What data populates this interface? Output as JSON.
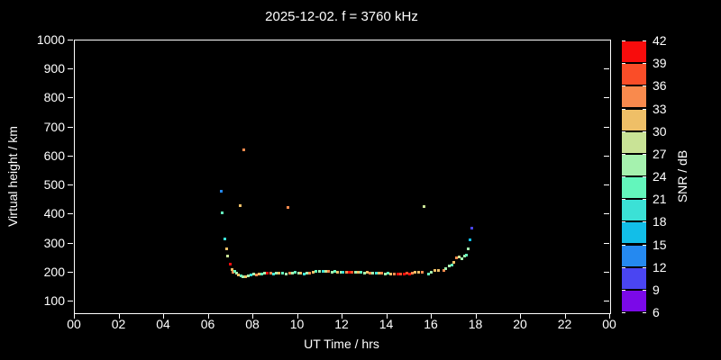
{
  "title": "2025-12-02. f = 3760 kHz",
  "axes": {
    "x": {
      "label": "UT Time / hrs",
      "min": 0,
      "max": 24,
      "tick_values": [
        0,
        2,
        4,
        6,
        8,
        10,
        12,
        14,
        16,
        18,
        20,
        22,
        24
      ],
      "tick_labels": [
        "00",
        "02",
        "04",
        "06",
        "08",
        "10",
        "12",
        "14",
        "16",
        "18",
        "20",
        "22",
        "00"
      ]
    },
    "y": {
      "label": "Virtual height / km",
      "min": 60,
      "max": 1000,
      "tick_values": [
        100,
        200,
        300,
        400,
        500,
        600,
        700,
        800,
        900,
        1000
      ]
    }
  },
  "colorbar": {
    "label": "SNR / dB",
    "min": 6,
    "max": 42,
    "step": 3,
    "tick_labels": [
      42,
      39,
      36,
      33,
      30,
      27,
      24,
      21,
      18,
      15,
      12,
      9,
      6
    ],
    "colors_low_to_high": [
      "#7B09E8",
      "#4A45F2",
      "#2589F0",
      "#12BEE8",
      "#3BE1D6",
      "#63F6BC",
      "#A5F2AE",
      "#C9E396",
      "#EFBF67",
      "#F98A4D",
      "#FA4D28",
      "#F80C0C"
    ]
  },
  "chart_data": {
    "type": "scatter",
    "title": "2025-12-02. f = 3760 kHz",
    "xlabel": "UT Time / hrs",
    "ylabel": "Virtual height / km",
    "zlabel": "SNR / dB",
    "xlim": [
      0,
      24
    ],
    "ylim": [
      60,
      1000
    ],
    "zlim": [
      6,
      42
    ],
    "grid": false,
    "legend": "colorbar-right",
    "points_format": [
      "ut_hr",
      "virtual_height_km",
      "snr_db"
    ],
    "points": [
      [
        6.55,
        481,
        13
      ],
      [
        6.57,
        409,
        22
      ],
      [
        6.72,
        319,
        19
      ],
      [
        6.8,
        282,
        31
      ],
      [
        6.84,
        259,
        28
      ],
      [
        6.95,
        230,
        40
      ],
      [
        7.03,
        212,
        31
      ],
      [
        7.08,
        202,
        34
      ],
      [
        7.16,
        207,
        22
      ],
      [
        7.22,
        199,
        25
      ],
      [
        7.31,
        192,
        31
      ],
      [
        7.38,
        433,
        31
      ],
      [
        7.57,
        625,
        34
      ],
      [
        9.52,
        426,
        34
      ],
      [
        15.64,
        428,
        28
      ],
      [
        7.42,
        190,
        22
      ],
      [
        7.52,
        188,
        25
      ],
      [
        7.62,
        186,
        31
      ],
      [
        7.75,
        190,
        25
      ],
      [
        7.88,
        193,
        19
      ],
      [
        8.0,
        195,
        25
      ],
      [
        8.12,
        193,
        34
      ],
      [
        8.25,
        195,
        31
      ],
      [
        8.38,
        197,
        22
      ],
      [
        8.5,
        199,
        25
      ],
      [
        8.62,
        201,
        40
      ],
      [
        8.75,
        199,
        34
      ],
      [
        8.88,
        197,
        19
      ],
      [
        9.0,
        199,
        25
      ],
      [
        9.15,
        201,
        31
      ],
      [
        9.3,
        199,
        22
      ],
      [
        9.45,
        197,
        25
      ],
      [
        9.6,
        199,
        34
      ],
      [
        9.72,
        201,
        25
      ],
      [
        9.85,
        203,
        22
      ],
      [
        10.0,
        201,
        25
      ],
      [
        10.12,
        199,
        31
      ],
      [
        10.25,
        197,
        19
      ],
      [
        10.4,
        199,
        25
      ],
      [
        10.52,
        201,
        34
      ],
      [
        10.65,
        203,
        31
      ],
      [
        10.8,
        205,
        22
      ],
      [
        10.95,
        206,
        25
      ],
      [
        11.1,
        207,
        19
      ],
      [
        11.22,
        207,
        28
      ],
      [
        11.35,
        205,
        34
      ],
      [
        11.5,
        204,
        25
      ],
      [
        11.62,
        205,
        22
      ],
      [
        11.75,
        204,
        31
      ],
      [
        11.9,
        203,
        25
      ],
      [
        12.02,
        202,
        19
      ],
      [
        12.15,
        203,
        34
      ],
      [
        12.3,
        202,
        40
      ],
      [
        12.42,
        203,
        37
      ],
      [
        12.55,
        204,
        25
      ],
      [
        12.7,
        203,
        31
      ],
      [
        12.82,
        202,
        22
      ],
      [
        12.95,
        201,
        25
      ],
      [
        13.1,
        202,
        31
      ],
      [
        13.22,
        201,
        34
      ],
      [
        13.35,
        200,
        25
      ],
      [
        13.5,
        199,
        19
      ],
      [
        13.62,
        200,
        31
      ],
      [
        13.75,
        199,
        34
      ],
      [
        13.9,
        198,
        25
      ],
      [
        14.02,
        199,
        22
      ],
      [
        14.15,
        198,
        31
      ],
      [
        14.3,
        197,
        34
      ],
      [
        14.45,
        198,
        40
      ],
      [
        14.6,
        197,
        37
      ],
      [
        14.75,
        198,
        40
      ],
      [
        14.88,
        199,
        37
      ],
      [
        15.0,
        198,
        40
      ],
      [
        15.12,
        199,
        34
      ],
      [
        15.25,
        202,
        31
      ],
      [
        15.4,
        204,
        31
      ],
      [
        15.55,
        203,
        34
      ],
      [
        15.84,
        197,
        22
      ],
      [
        15.97,
        204,
        25
      ],
      [
        16.12,
        209,
        31
      ],
      [
        16.3,
        209,
        31
      ],
      [
        16.54,
        209,
        34
      ],
      [
        16.62,
        216,
        25
      ],
      [
        16.78,
        223,
        25
      ],
      [
        16.88,
        228,
        22
      ],
      [
        16.97,
        237,
        31
      ],
      [
        17.08,
        252,
        34
      ],
      [
        17.2,
        255,
        28
      ],
      [
        17.35,
        250,
        25
      ],
      [
        17.45,
        258,
        25
      ],
      [
        17.55,
        262,
        22
      ],
      [
        17.62,
        284,
        25
      ],
      [
        17.7,
        313,
        16
      ],
      [
        17.79,
        354,
        11
      ]
    ]
  }
}
